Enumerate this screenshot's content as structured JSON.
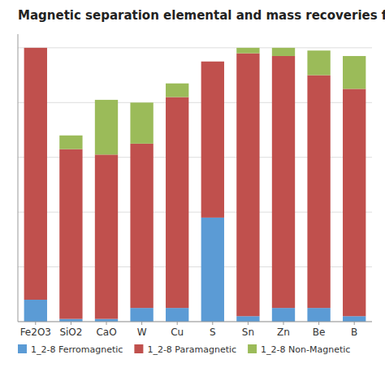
{
  "chart_data": {
    "type": "bar",
    "stacked": true,
    "title": "Magnetic separation elemental and mass recoveries for",
    "categories": [
      "Fe2O3",
      "SiO2",
      "CaO",
      "W",
      "Cu",
      "S",
      "Sn",
      "Zn",
      "Be",
      "B"
    ],
    "series": [
      {
        "name": "1_2-8 Ferromagnetic",
        "color": "#5B9BD5",
        "values": [
          8,
          1,
          1,
          5,
          5,
          38,
          2,
          5,
          5,
          2
        ]
      },
      {
        "name": "1_2-8 Paramagnetic",
        "color": "#C0504D",
        "values": [
          92,
          62,
          60,
          60,
          77,
          57,
          96,
          92,
          85,
          83
        ]
      },
      {
        "name": "1_2-8 Non-Magnetic",
        "color": "#9BBB59",
        "values": [
          0,
          5,
          20,
          15,
          5,
          0,
          2,
          3,
          9,
          12
        ]
      }
    ],
    "ylim": [
      0,
      105
    ],
    "yticks": [
      0,
      20,
      40,
      60,
      80,
      100
    ],
    "grid": true,
    "legend": "bottom",
    "tick_labels": "x"
  }
}
